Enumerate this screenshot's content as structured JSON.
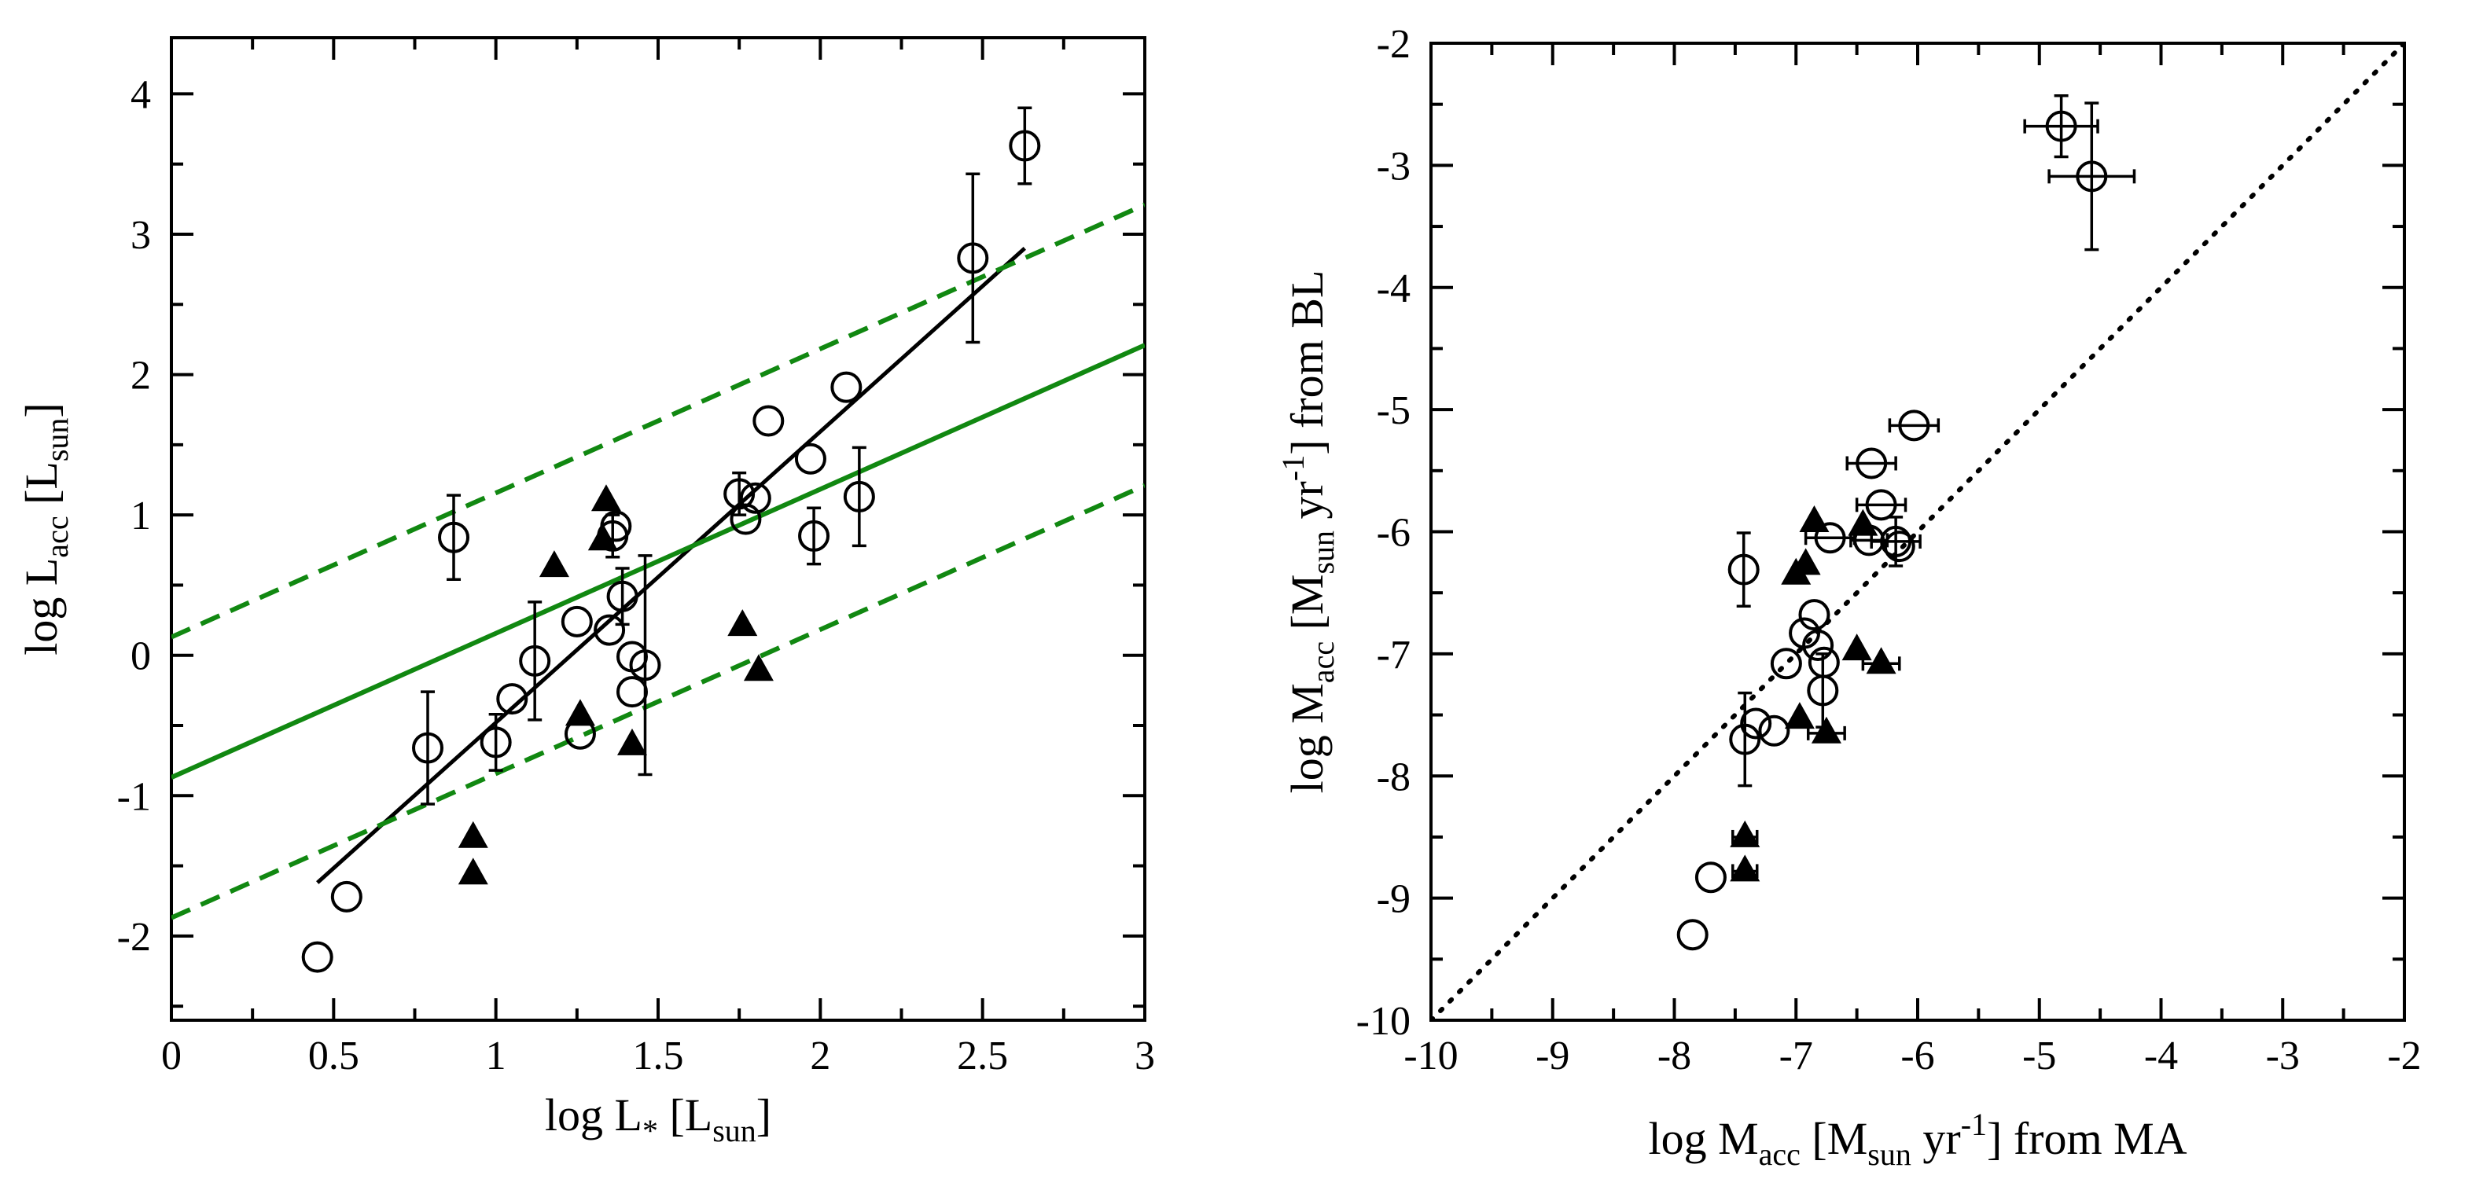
{
  "colors": {
    "green_fit": "#118811",
    "ink": "#000000"
  },
  "chart_data": [
    {
      "type": "scatter",
      "id": "left",
      "xlabel": {
        "main": "log L",
        "sub": "*",
        "unit_main": "[L",
        "unit_sub": "sun",
        "unit_close": "]"
      },
      "ylabel": {
        "main": "log L",
        "sub": "acc",
        "unit_main": "[L",
        "unit_sub": "sun",
        "unit_close": "]"
      },
      "xlim": [
        0,
        3
      ],
      "ylim": [
        -2.6,
        4.4
      ],
      "xticks": [
        0,
        0.5,
        1,
        1.5,
        2,
        2.5,
        3
      ],
      "xtick_labels": [
        "0",
        "0.5",
        "1",
        "1.5",
        "2",
        "2.5",
        "3"
      ],
      "yticks": [
        -2,
        -1,
        0,
        1,
        2,
        3,
        4
      ],
      "ytick_labels": [
        "-2",
        "-1",
        "0",
        "1",
        "2",
        "3",
        "4"
      ],
      "series": [
        {
          "name": "open circles",
          "marker": "circle",
          "points": [
            {
              "x": 0.45,
              "y": -2.15
            },
            {
              "x": 0.54,
              "y": -1.72
            },
            {
              "x": 0.79,
              "y": -0.66,
              "yerr": 0.4
            },
            {
              "x": 0.87,
              "y": 0.84,
              "yerr": 0.3
            },
            {
              "x": 1.0,
              "y": -0.62,
              "yerr": 0.2
            },
            {
              "x": 1.05,
              "y": -0.31
            },
            {
              "x": 1.12,
              "y": -0.04,
              "yerr": 0.42
            },
            {
              "x": 1.25,
              "y": 0.24
            },
            {
              "x": 1.26,
              "y": -0.56
            },
            {
              "x": 1.35,
              "y": 0.18
            },
            {
              "x": 1.36,
              "y": 0.85,
              "yerr": 0.15
            },
            {
              "x": 1.37,
              "y": 0.92
            },
            {
              "x": 1.39,
              "y": 0.42,
              "yerr": 0.2
            },
            {
              "x": 1.42,
              "y": -0.01
            },
            {
              "x": 1.42,
              "y": -0.26
            },
            {
              "x": 1.46,
              "y": -0.07,
              "yerr": 0.78
            },
            {
              "x": 1.75,
              "y": 1.15,
              "yerr": 0.15
            },
            {
              "x": 1.77,
              "y": 0.97
            },
            {
              "x": 1.8,
              "y": 1.12
            },
            {
              "x": 1.84,
              "y": 1.67
            },
            {
              "x": 1.97,
              "y": 1.4
            },
            {
              "x": 1.98,
              "y": 0.85,
              "yerr": 0.2
            },
            {
              "x": 2.08,
              "y": 1.91
            },
            {
              "x": 2.12,
              "y": 1.13,
              "yerr": 0.35
            },
            {
              "x": 2.47,
              "y": 2.83,
              "yerr": 0.6
            },
            {
              "x": 2.63,
              "y": 3.63,
              "yerr": 0.27
            }
          ]
        },
        {
          "name": "filled triangles",
          "marker": "triangle",
          "points": [
            {
              "x": 0.93,
              "y": -1.3
            },
            {
              "x": 0.93,
              "y": -1.56
            },
            {
              "x": 1.18,
              "y": 0.63
            },
            {
              "x": 1.26,
              "y": -0.43
            },
            {
              "x": 1.33,
              "y": 0.82
            },
            {
              "x": 1.34,
              "y": 1.1
            },
            {
              "x": 1.42,
              "y": -0.64
            },
            {
              "x": 1.76,
              "y": 0.21
            },
            {
              "x": 1.81,
              "y": -0.11
            }
          ]
        }
      ],
      "lines": [
        {
          "name": "black fit",
          "style": "solid-black",
          "x": [
            0.45,
            2.63
          ],
          "y": [
            -1.62,
            2.9
          ]
        },
        {
          "name": "green fit",
          "style": "solid-green",
          "x": [
            0,
            3
          ],
          "y": [
            -0.87,
            2.21
          ]
        },
        {
          "name": "green upper",
          "style": "dashed-green",
          "x": [
            0,
            3
          ],
          "y": [
            0.13,
            3.21
          ]
        },
        {
          "name": "green lower",
          "style": "dashed-green",
          "x": [
            0,
            3
          ],
          "y": [
            -1.87,
            1.21
          ]
        }
      ]
    },
    {
      "type": "scatter",
      "id": "right",
      "xlabel": {
        "main": "log M",
        "sub": "acc",
        "unit_main": "[M",
        "unit_sub": "sun",
        "unit_mid": " yr",
        "unit_sup": "-1",
        "unit_close": "] from MA"
      },
      "ylabel": {
        "main": "log M",
        "sub": "acc",
        "unit_main": "[M",
        "unit_sub": "sun",
        "unit_mid": " yr",
        "unit_sup": "-1",
        "unit_close": "] from BL"
      },
      "xlim": [
        -10,
        -2
      ],
      "ylim": [
        -10,
        -2
      ],
      "xticks": [
        -10,
        -9,
        -8,
        -7,
        -6,
        -5,
        -4,
        -3,
        -2
      ],
      "xtick_labels": [
        "-10",
        "-9",
        "-8",
        "-7",
        "-6",
        "-5",
        "-4",
        "-3",
        "-2"
      ],
      "yticks": [
        -10,
        -9,
        -8,
        -7,
        -6,
        -5,
        -4,
        -3,
        -2
      ],
      "ytick_labels": [
        "-10",
        "-9",
        "-8",
        "-7",
        "-6",
        "-5",
        "-4",
        "-3",
        "-2"
      ],
      "series": [
        {
          "name": "open circles",
          "marker": "circle",
          "points": [
            {
              "x": -7.85,
              "y": -9.3
            },
            {
              "x": -7.7,
              "y": -8.83
            },
            {
              "x": -7.43,
              "y": -6.31,
              "yerr": 0.3
            },
            {
              "x": -7.42,
              "y": -7.7,
              "yerr": 0.38
            },
            {
              "x": -7.33,
              "y": -7.57
            },
            {
              "x": -7.18,
              "y": -7.63
            },
            {
              "x": -7.08,
              "y": -7.08
            },
            {
              "x": -6.93,
              "y": -6.83
            },
            {
              "x": -6.85,
              "y": -6.68
            },
            {
              "x": -6.82,
              "y": -6.93
            },
            {
              "x": -6.78,
              "y": -7.3,
              "yerr": 0.3
            },
            {
              "x": -6.77,
              "y": -7.07
            },
            {
              "x": -6.72,
              "y": -6.05,
              "xerr": 0.2
            },
            {
              "x": -6.38,
              "y": -5.44,
              "xerr": 0.2
            },
            {
              "x": -6.4,
              "y": -6.07,
              "xerr": 0.15
            },
            {
              "x": -6.3,
              "y": -5.78,
              "xerr": 0.2
            },
            {
              "x": -6.18,
              "y": -6.08,
              "yerr": 0.2,
              "xerr": 0.2
            },
            {
              "x": -6.15,
              "y": -6.12
            },
            {
              "x": -6.03,
              "y": -5.13,
              "xerr": 0.2
            },
            {
              "x": -4.82,
              "y": -2.68,
              "xerr": 0.3,
              "yerr": 0.25
            },
            {
              "x": -4.57,
              "y": -3.09,
              "xerr": 0.35,
              "yerr": 0.6
            }
          ]
        },
        {
          "name": "filled triangles",
          "marker": "triangle",
          "points": [
            {
              "x": -7.42,
              "y": -8.5,
              "xerr": 0.1
            },
            {
              "x": -7.42,
              "y": -8.78,
              "xerr": 0.1
            },
            {
              "x": -7.0,
              "y": -6.35
            },
            {
              "x": -6.97,
              "y": -7.53
            },
            {
              "x": -6.92,
              "y": -6.27
            },
            {
              "x": -6.85,
              "y": -5.92
            },
            {
              "x": -6.75,
              "y": -7.65,
              "xerr": 0.15
            },
            {
              "x": -6.5,
              "y": -6.97
            },
            {
              "x": -6.3,
              "y": -7.08,
              "xerr": 0.15
            },
            {
              "x": -6.45,
              "y": -5.95
            }
          ]
        }
      ],
      "lines": [
        {
          "name": "one-to-one",
          "style": "dotted-black",
          "x": [
            -10,
            -2
          ],
          "y": [
            -10,
            -2
          ]
        }
      ]
    }
  ]
}
